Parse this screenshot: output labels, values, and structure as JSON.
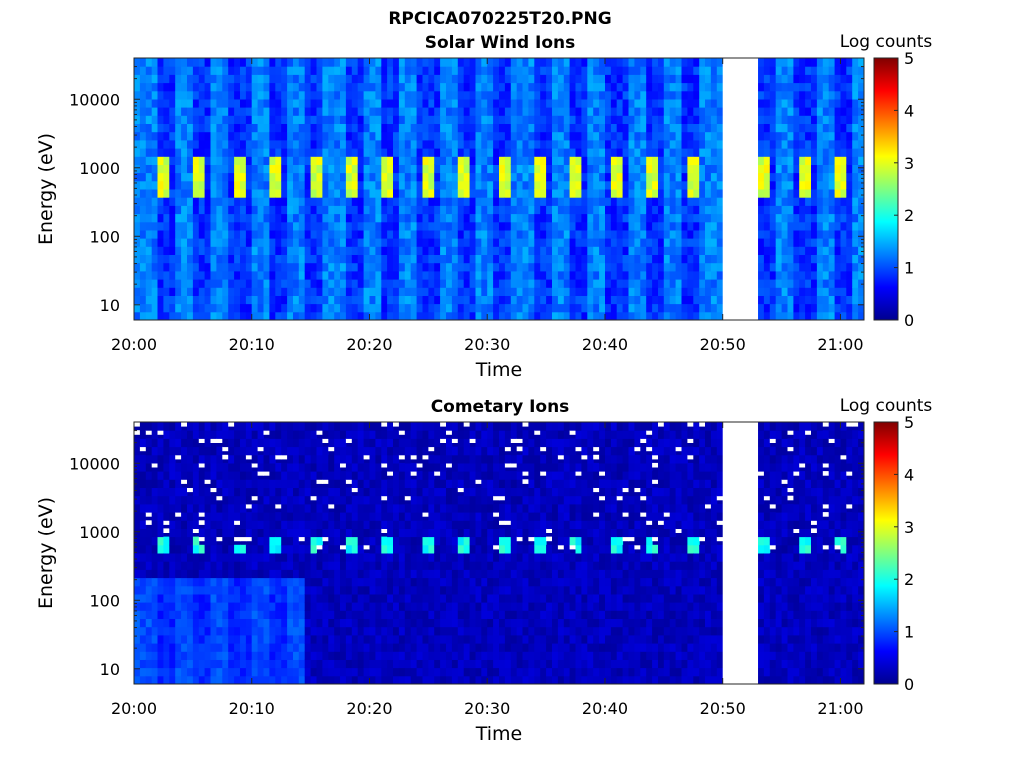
{
  "figure_title": "RPCICA070225T20.PNG",
  "chart_data": [
    {
      "type": "heatmap",
      "title": "Solar Wind Ions",
      "xlabel": "Time",
      "ylabel": "Energy (eV)",
      "x_tick_labels": [
        "20:00",
        "20:10",
        "20:20",
        "20:30",
        "20:40",
        "20:50",
        "21:00"
      ],
      "x_range": [
        "20:00",
        "21:02"
      ],
      "y_scale": "log",
      "y_tick_labels": [
        "10",
        "100",
        "1000",
        "10000"
      ],
      "y_range": [
        6,
        40000
      ],
      "colorbar": {
        "label": "Log counts",
        "range": [
          0,
          5
        ],
        "tick_labels": [
          "0",
          "1",
          "2",
          "3",
          "4",
          "5"
        ],
        "colormap": "jet"
      },
      "data_gap": [
        "20:50",
        "20:53"
      ],
      "features": [
        {
          "description_energy_eV": [
            400,
            1500
          ],
          "peak_log_counts": 3,
          "periodic_sweep_minutes": 3.2
        }
      ],
      "background_log_counts": 1
    },
    {
      "type": "heatmap",
      "title": "Cometary Ions",
      "xlabel": "Time",
      "ylabel": "Energy (eV)",
      "x_tick_labels": [
        "20:00",
        "20:10",
        "20:20",
        "20:30",
        "20:40",
        "20:50",
        "21:00"
      ],
      "x_range": [
        "20:00",
        "21:02"
      ],
      "y_scale": "log",
      "y_tick_labels": [
        "10",
        "100",
        "1000",
        "10000"
      ],
      "y_range": [
        6,
        40000
      ],
      "colorbar": {
        "label": "Log counts",
        "range": [
          0,
          5
        ],
        "tick_labels": [
          "0",
          "1",
          "2",
          "3",
          "4",
          "5"
        ],
        "colormap": "jet"
      },
      "data_gap": [
        "20:50",
        "20:53"
      ],
      "features": [
        {
          "description_energy_eV": [
            450,
            800
          ],
          "peak_log_counts": 2,
          "periodic_sweep_minutes": 3.2
        }
      ],
      "background_log_counts": 0.3
    }
  ]
}
